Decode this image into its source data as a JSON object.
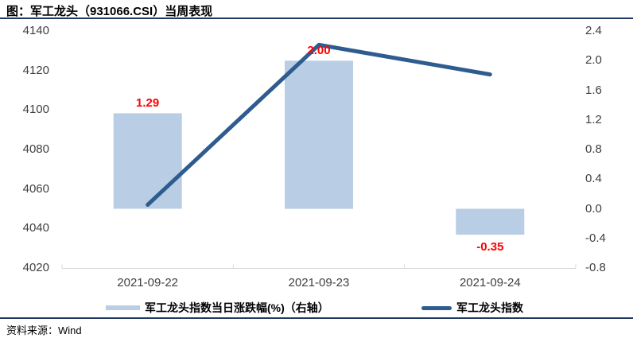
{
  "header": {
    "title": "图：军工龙头（931066.CSI）当周表现"
  },
  "footer": {
    "source": "资料来源：Wind"
  },
  "legend": {
    "items": [
      {
        "swatch": "bar-swatch",
        "label": "军工龙头指数当日涨跌幅(%)（右轴）"
      },
      {
        "swatch": "line-swatch",
        "label": "军工龙头指数"
      }
    ]
  },
  "colors": {
    "bar_fill": "#B9CDE4",
    "line": "#2E5C8F",
    "rule_navy": "#1F3864",
    "data_label_red": "#FF0000",
    "axis_text": "#404040",
    "axis_line": "#D9D9D9",
    "title_text": "#000000"
  },
  "chart_data": {
    "type": "combo",
    "title": "军工龙头（931066.CSI）当周表现",
    "categories": [
      "2021-09-22",
      "2021-09-23",
      "2021-09-24"
    ],
    "series": [
      {
        "name": "军工龙头指数当日涨跌幅(%)（右轴）",
        "type": "bar",
        "axis": "right",
        "values": [
          1.29,
          2.0,
          -0.35
        ],
        "data_labels": [
          "1.29",
          "2.00",
          "-0.35"
        ]
      },
      {
        "name": "军工龙头指数",
        "type": "line",
        "axis": "left",
        "values": [
          4052,
          4133,
          4118
        ]
      }
    ],
    "left_axis": {
      "min": 4020,
      "max": 4140,
      "step": 20,
      "decimals": 0,
      "ticks": [
        4140,
        4120,
        4100,
        4080,
        4060,
        4040,
        4020
      ]
    },
    "right_axis": {
      "min": -0.8,
      "max": 2.4,
      "step": 0.4,
      "decimals": 1,
      "ticks": [
        2.4,
        2.0,
        1.6,
        1.2,
        0.8,
        0.4,
        0.0,
        -0.4,
        -0.8
      ]
    },
    "grid": false,
    "legend_position": "bottom"
  }
}
